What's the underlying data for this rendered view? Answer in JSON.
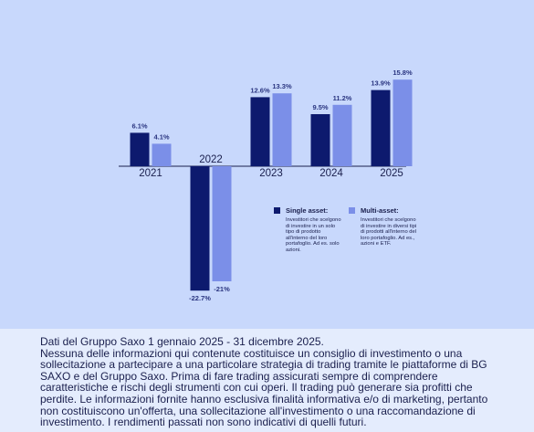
{
  "chart_data": {
    "type": "bar",
    "categories": [
      "2021",
      "2022",
      "2023",
      "2024",
      "2025"
    ],
    "series": [
      {
        "name": "Single asset:",
        "color": "#0d1a6e",
        "values": [
          6.1,
          -22.7,
          12.6,
          9.5,
          13.9
        ],
        "value_labels": [
          "6.1%",
          "-22.7%",
          "12.6%",
          "9.5%",
          "13.9%"
        ],
        "description": "Investitori che scelgono di investire in un solo tipo di prodotto all'interno del loro portafoglio. Ad es. solo azioni."
      },
      {
        "name": "Multi-asset:",
        "color": "#7b8fe8",
        "values": [
          4.1,
          -21,
          13.3,
          11.2,
          15.8
        ],
        "value_labels": [
          "4.1%",
          "-21%",
          "13.3%",
          "11.2%",
          "15.8%"
        ],
        "description": "Investitori che scelgono di investire in diversi tipi di prodotti all'interno del loro portafoglio. Ad es., azioni e ETF."
      }
    ]
  },
  "footer": [
    "Dati del Gruppo Saxo 1 gennaio 2025 - 31 dicembre 2025.",
    "Nessuna delle informazioni qui contenute costituisce un consiglio di investimento o una sollecitazione a partecipare a una particolare strategia di trading tramite le piattaforme di BG SAXO e del Gruppo Saxo. Prima di fare trading assicurati sempre di comprendere caratteristiche e rischi degli strumenti con cui operi. Il trading può generare sia profitti che perdite. Le informazioni fornite hanno esclusiva finalità informativa e/o di marketing, pertanto non costituiscono un'offerta, una sollecitazione all'investimento o una raccomandazione di investimento. I rendimenti passati non sono indicativi di quelli futuri."
  ]
}
